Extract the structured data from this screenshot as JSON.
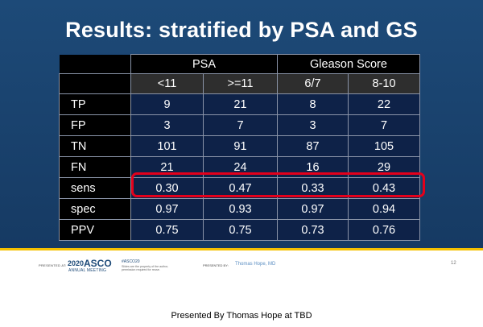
{
  "slide": {
    "title": "Results: stratified by PSA and GS",
    "table": {
      "group_headers": [
        "PSA",
        "Gleason Score"
      ],
      "sub_headers": [
        "<11",
        ">=11",
        "6/7",
        "8-10"
      ],
      "rows": [
        {
          "label": "TP",
          "values": [
            "9",
            "21",
            "8",
            "22"
          ]
        },
        {
          "label": "FP",
          "values": [
            "3",
            "7",
            "3",
            "7"
          ]
        },
        {
          "label": "TN",
          "values": [
            "101",
            "91",
            "87",
            "105"
          ]
        },
        {
          "label": "FN",
          "values": [
            "21",
            "24",
            "16",
            "29"
          ]
        },
        {
          "label": "sens",
          "values": [
            "0.30",
            "0.47",
            "0.33",
            "0.43"
          ]
        },
        {
          "label": "spec",
          "values": [
            "0.97",
            "0.93",
            "0.97",
            "0.94"
          ]
        },
        {
          "label": "PPV",
          "values": [
            "0.75",
            "0.75",
            "0.73",
            "0.76"
          ]
        }
      ],
      "highlighted_row": "sens",
      "highlight_color": "#e4001b"
    },
    "footer": {
      "presented_at": "PRESENTED AT:",
      "logo_year": "2020",
      "logo_name": "ASCO",
      "logo_sub": "ANNUAL MEETING",
      "hashtag": "#ASCO20",
      "note": "Slides are the property of the author, permission required for reuse.",
      "presented_by": "PRESENTED BY:",
      "presenter": "Thomas Hope, MD",
      "page_number": "12"
    }
  },
  "caption": "Presented By Thomas Hope at TBD"
}
